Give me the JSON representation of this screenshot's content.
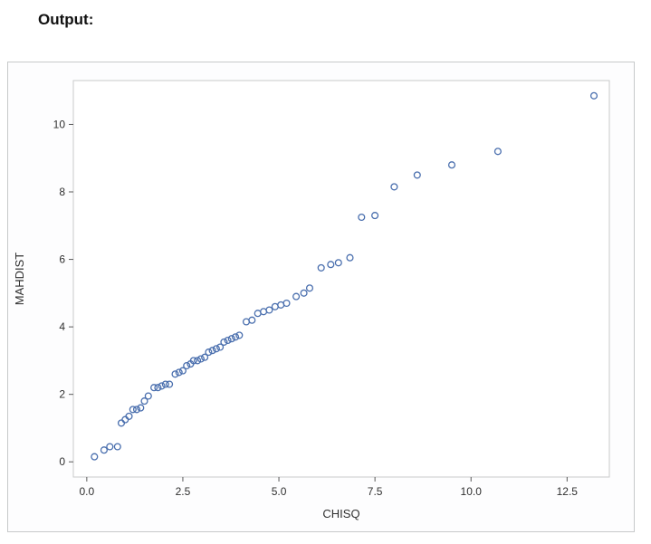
{
  "page": {
    "title": "Output:"
  },
  "chart_data": {
    "type": "scatter",
    "title": "",
    "xlabel": "CHISQ",
    "ylabel": "MAHDIST",
    "xlim": [
      -0.35,
      13.6
    ],
    "ylim": [
      -0.45,
      11.3
    ],
    "xticks": [
      0.0,
      2.5,
      5.0,
      7.5,
      10.0,
      12.5
    ],
    "xtick_labels": [
      "0.0",
      "2.5",
      "5.0",
      "7.5",
      "10.0",
      "12.5"
    ],
    "yticks": [
      0,
      2,
      4,
      6,
      8,
      10
    ],
    "ytick_labels": [
      "0",
      "2",
      "4",
      "6",
      "8",
      "10"
    ],
    "grid": false,
    "legend": "none",
    "marker_color": "#4a6fae",
    "frame_color": "#c9cacb",
    "points": [
      [
        0.2,
        0.15
      ],
      [
        0.45,
        0.35
      ],
      [
        0.6,
        0.45
      ],
      [
        0.8,
        0.45
      ],
      [
        0.9,
        1.15
      ],
      [
        1.0,
        1.25
      ],
      [
        1.1,
        1.35
      ],
      [
        1.2,
        1.55
      ],
      [
        1.3,
        1.55
      ],
      [
        1.4,
        1.6
      ],
      [
        1.5,
        1.8
      ],
      [
        1.6,
        1.95
      ],
      [
        1.75,
        2.2
      ],
      [
        1.85,
        2.2
      ],
      [
        1.95,
        2.25
      ],
      [
        2.05,
        2.3
      ],
      [
        2.15,
        2.3
      ],
      [
        2.3,
        2.6
      ],
      [
        2.4,
        2.65
      ],
      [
        2.5,
        2.7
      ],
      [
        2.6,
        2.85
      ],
      [
        2.7,
        2.9
      ],
      [
        2.78,
        3.0
      ],
      [
        2.88,
        3.0
      ],
      [
        2.97,
        3.05
      ],
      [
        3.07,
        3.1
      ],
      [
        3.17,
        3.25
      ],
      [
        3.27,
        3.3
      ],
      [
        3.37,
        3.35
      ],
      [
        3.47,
        3.4
      ],
      [
        3.57,
        3.55
      ],
      [
        3.67,
        3.6
      ],
      [
        3.77,
        3.65
      ],
      [
        3.87,
        3.7
      ],
      [
        3.97,
        3.75
      ],
      [
        4.15,
        4.15
      ],
      [
        4.3,
        4.2
      ],
      [
        4.45,
        4.4
      ],
      [
        4.6,
        4.45
      ],
      [
        4.75,
        4.5
      ],
      [
        4.9,
        4.6
      ],
      [
        5.05,
        4.65
      ],
      [
        5.2,
        4.7
      ],
      [
        5.45,
        4.9
      ],
      [
        5.65,
        5.0
      ],
      [
        5.8,
        5.15
      ],
      [
        6.1,
        5.75
      ],
      [
        6.35,
        5.85
      ],
      [
        6.55,
        5.9
      ],
      [
        6.85,
        6.05
      ],
      [
        7.15,
        7.25
      ],
      [
        7.5,
        7.3
      ],
      [
        8.0,
        8.15
      ],
      [
        8.6,
        8.5
      ],
      [
        9.5,
        8.8
      ],
      [
        10.7,
        9.2
      ],
      [
        13.2,
        10.85
      ]
    ]
  }
}
